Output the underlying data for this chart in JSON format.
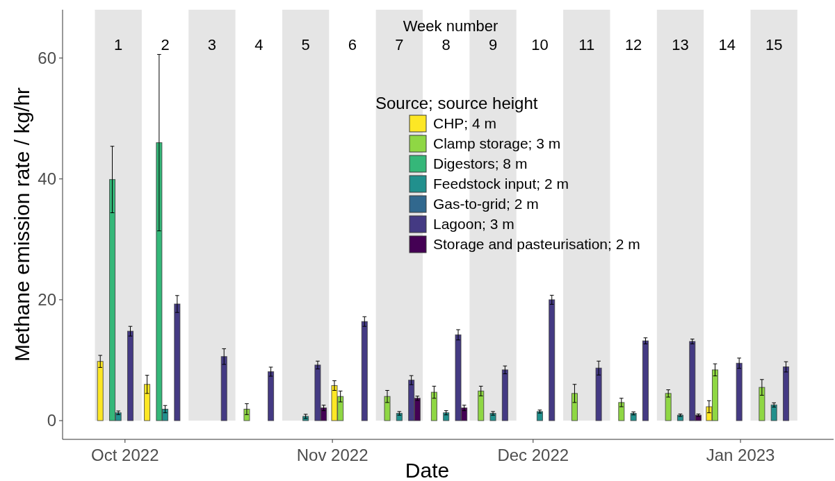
{
  "chart_data": {
    "type": "bar",
    "xlabel": "Date",
    "ylabel": "Methane emission rate / kg/hr",
    "legend_title": "Source; source height",
    "x2label": "Week number",
    "xlim": [
      "2022-09-21T16:00",
      "2023-01-14T22:00"
    ],
    "xticks": [
      {
        "value": "2022-10-01",
        "label": "Oct 2022"
      },
      {
        "value": "2022-11-01",
        "label": "Nov 2022"
      },
      {
        "value": "2022-12-01",
        "label": "Dec 2022"
      },
      {
        "value": "2023-01-01",
        "label": "Jan 2023"
      }
    ],
    "x2lim": [
      "2022-09-21T16:00",
      "2023-01-14T22:00"
    ],
    "x2ticks": [
      {
        "value": "2022-09-30",
        "label": "1"
      },
      {
        "value": "2022-10-07",
        "label": "2"
      },
      {
        "value": "2022-10-14",
        "label": "3"
      },
      {
        "value": "2022-10-21",
        "label": "4"
      },
      {
        "value": "2022-10-28",
        "label": "5"
      },
      {
        "value": "2022-11-04",
        "label": "6"
      },
      {
        "value": "2022-11-11",
        "label": "7"
      },
      {
        "value": "2022-11-18",
        "label": "8"
      },
      {
        "value": "2022-11-25",
        "label": "9"
      },
      {
        "value": "2022-12-02",
        "label": "10"
      },
      {
        "value": "2022-12-09",
        "label": "11"
      },
      {
        "value": "2022-12-16",
        "label": "12"
      },
      {
        "value": "2022-12-23",
        "label": "13"
      },
      {
        "value": "2022-12-30",
        "label": "14"
      },
      {
        "value": "2023-01-06",
        "label": "15"
      }
    ],
    "ylim": [
      -3.1,
      68
    ],
    "yticks": [
      0,
      20,
      40,
      60
    ],
    "grid": false,
    "legend": "top",
    "bands": [
      {
        "axis": "x",
        "from": "2022-09-26T12:00",
        "to": "2022-10-03T12:00",
        "color": "#e5e5e5"
      },
      {
        "axis": "x",
        "from": "2022-10-10T12:00",
        "to": "2022-10-17T12:00",
        "color": "#e5e5e5"
      },
      {
        "axis": "x",
        "from": "2022-10-24T12:00",
        "to": "2022-10-31T12:00",
        "color": "#e5e5e5"
      },
      {
        "axis": "x",
        "from": "2022-11-07T12:00",
        "to": "2022-11-14T12:00",
        "color": "#e5e5e5"
      },
      {
        "axis": "x",
        "from": "2022-11-21T12:00",
        "to": "2022-11-28T12:00",
        "color": "#e5e5e5"
      },
      {
        "axis": "x",
        "from": "2022-12-05T12:00",
        "to": "2022-12-12T12:00",
        "color": "#e5e5e5"
      },
      {
        "axis": "x",
        "from": "2022-12-19T12:00",
        "to": "2022-12-26T12:00",
        "color": "#e5e5e5"
      },
      {
        "axis": "x",
        "from": "2023-01-02T12:00",
        "to": "2023-01-09T12:00",
        "color": "#e5e5e5"
      }
    ],
    "series": [
      {
        "name": "CHP; 4 m",
        "color": "#fde725",
        "x": [
          "2022-09-27T07:12",
          "2022-10-04T07:12",
          "2022-11-01T07:12",
          "2022-12-27T07:12"
        ],
        "values": [
          9.8,
          6.0,
          5.8,
          2.3
        ],
        "errors": [
          1.0,
          1.5,
          0.8,
          1.0
        ]
      },
      {
        "name": "Clamp storage; 3 m",
        "color": "#8fd744",
        "x": [
          "2022-10-19T04:48",
          "2022-11-02T04:48",
          "2022-11-09T04:48",
          "2022-11-16T04:48",
          "2022-11-23T04:48",
          "2022-12-07T04:48",
          "2022-12-14T04:48",
          "2022-12-21T04:48",
          "2022-12-28T04:48",
          "2023-01-04T04:48"
        ],
        "values": [
          1.9,
          4.0,
          4.0,
          4.7,
          4.9,
          4.5,
          3.0,
          4.5,
          8.4,
          5.5
        ],
        "errors": [
          0.9,
          0.9,
          1.0,
          1.0,
          0.8,
          1.5,
          0.7,
          0.6,
          1.0,
          1.3
        ]
      },
      {
        "name": "Digestors; 8 m",
        "color": "#35b779",
        "x": [
          "2022-09-29T02:24",
          "2022-10-06T02:24"
        ],
        "values": [
          39.9,
          46.0
        ],
        "errors": [
          5.5,
          14.6
        ]
      },
      {
        "name": "Feedstock input; 2 m",
        "color": "#21908d",
        "x": [
          "2022-09-30T00:00",
          "2022-10-07T00:00",
          "2022-10-28T00:00",
          "2022-11-11T00:00",
          "2022-11-18T00:00",
          "2022-11-25T00:00",
          "2022-12-02T00:00",
          "2022-12-16T00:00",
          "2022-12-23T00:00",
          "2023-01-06T00:00"
        ],
        "values": [
          1.3,
          1.9,
          0.7,
          1.2,
          1.3,
          1.2,
          1.5,
          1.2,
          0.9,
          2.6
        ],
        "errors": [
          0.3,
          0.6,
          0.35,
          0.3,
          0.35,
          0.3,
          0.25,
          0.25,
          0.2,
          0.35
        ]
      },
      {
        "name": "Gas-to-grid; 2 m",
        "color": "#31688e"
      },
      {
        "name": "Lagoon; 3 m",
        "color": "#443a83",
        "x": [
          "2022-10-01T19:12",
          "2022-10-08T19:12",
          "2022-10-15T19:12",
          "2022-10-22T19:12",
          "2022-10-29T19:12",
          "2022-11-05T19:12",
          "2022-11-12T19:12",
          "2022-11-19T19:12",
          "2022-11-26T19:12",
          "2022-12-03T19:12",
          "2022-12-10T19:12",
          "2022-12-17T19:12",
          "2022-12-24T19:12",
          "2022-12-31T19:12",
          "2023-01-07T19:12"
        ],
        "values": [
          14.8,
          19.3,
          10.6,
          8.1,
          9.2,
          16.4,
          6.7,
          14.2,
          8.4,
          20.0,
          8.7,
          13.2,
          13.1,
          9.5,
          8.9
        ],
        "errors": [
          0.8,
          1.4,
          1.3,
          0.75,
          0.65,
          0.8,
          0.75,
          0.85,
          0.65,
          0.75,
          1.15,
          0.5,
          0.4,
          0.85,
          0.85
        ]
      },
      {
        "name": "Storage and pasteurisation; 2 m",
        "color": "#440154",
        "x": [
          "2022-10-30T16:48",
          "2022-11-13T16:48",
          "2022-11-20T16:48",
          "2022-12-25T16:48"
        ],
        "values": [
          2.1,
          3.7,
          2.1,
          0.9
        ],
        "errors": [
          0.45,
          0.35,
          0.45,
          0.2
        ]
      }
    ]
  }
}
